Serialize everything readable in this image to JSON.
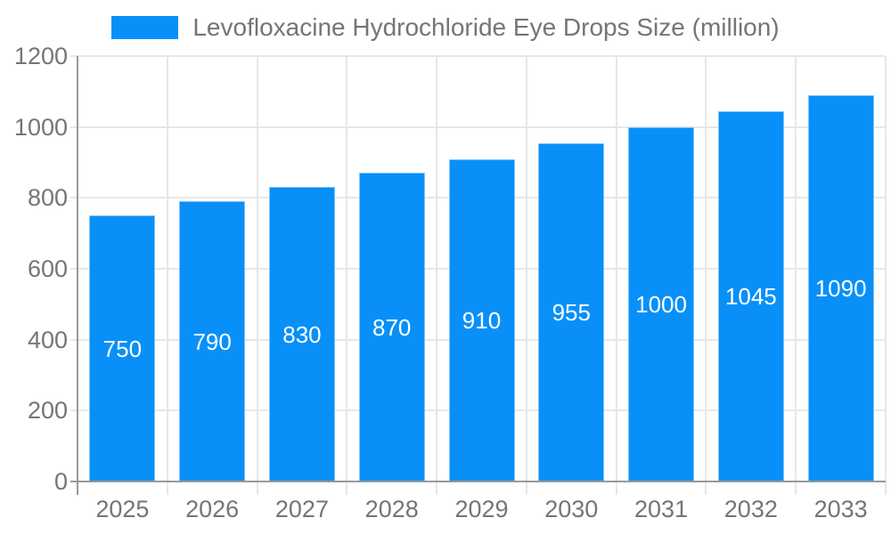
{
  "legend": {
    "label": "Levofloxacine Hydrochloride Eye Drops Size (million)"
  },
  "chart_data": {
    "type": "bar",
    "title": "Levofloxacine Hydrochloride Eye Drops Size (million)",
    "xlabel": "",
    "ylabel": "",
    "categories": [
      "2025",
      "2026",
      "2027",
      "2028",
      "2029",
      "2030",
      "2031",
      "2032",
      "2033"
    ],
    "values": [
      750,
      790,
      830,
      870,
      910,
      955,
      1000,
      1045,
      1090
    ],
    "yticks": [
      0,
      200,
      400,
      600,
      800,
      1000,
      1200
    ],
    "ylim": [
      0,
      1200
    ],
    "grid": true,
    "legend_position": "top",
    "bar_labels_position": "inside-center",
    "colors": {
      "bar_fill": "#0890f8",
      "bar_border": "#7ec3fa",
      "bar_label_text": "#ffffff",
      "axis_text": "#757575",
      "axis_line": "#999999",
      "gridline": "#e7e7e7",
      "background": "#ffffff"
    }
  }
}
